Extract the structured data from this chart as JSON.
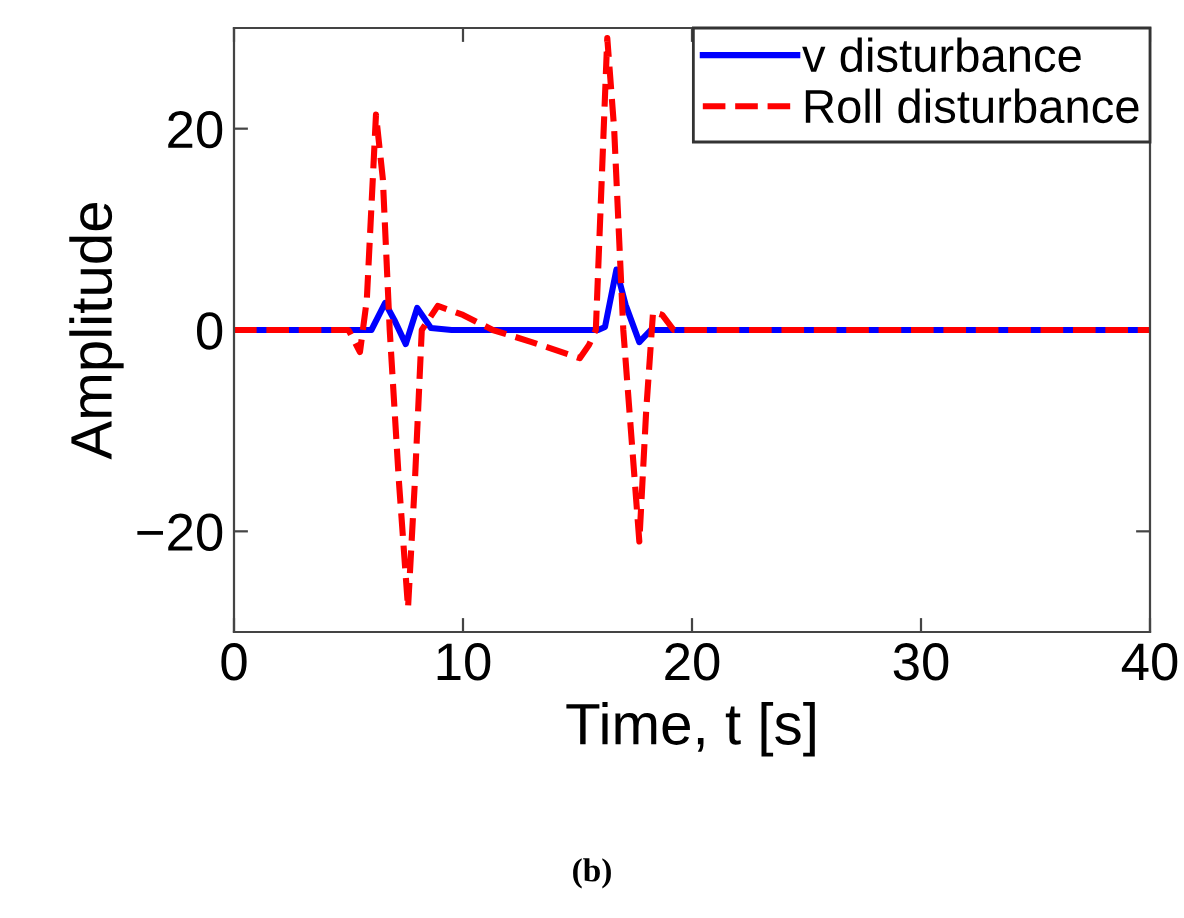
{
  "chart_data": {
    "type": "line",
    "xlabel": "Time, t [s]",
    "ylabel": "Amplitude",
    "xlim": [
      0,
      40
    ],
    "ylim": [
      -30,
      30
    ],
    "xticks": [
      0,
      10,
      20,
      30,
      40
    ],
    "yticks": [
      {
        "value": -20,
        "label": "−20"
      },
      0,
      20
    ],
    "grid": false,
    "legend": "top right",
    "annotations": [
      "(b)"
    ],
    "series": [
      {
        "name": "v disturbance",
        "color": "#0000ff",
        "line_style": "solid",
        "x": [
          0,
          6.0,
          6.6,
          7.0,
          7.5,
          8.0,
          8.6,
          9.5,
          15.9,
          16.2,
          16.7,
          17.1,
          17.7,
          18.2,
          40
        ],
        "values": [
          0,
          0,
          2.7,
          1.0,
          -1.4,
          2.2,
          0.2,
          0,
          0,
          0.3,
          6.0,
          2.5,
          -1.2,
          0,
          0
        ]
      },
      {
        "name": "Roll disturbance",
        "color": "#ff0000",
        "line_style": "dashed",
        "x": [
          0,
          5.0,
          5.5,
          5.8,
          6.2,
          6.5,
          6.8,
          7.2,
          7.6,
          7.9,
          8.2,
          8.9,
          10,
          11.3,
          13,
          15.1,
          15.5,
          15.8,
          16.3,
          16.6,
          17.0,
          17.4,
          17.7,
          18.0,
          18.3,
          18.7,
          19.2,
          40
        ],
        "values": [
          0,
          0,
          -2.2,
          3,
          21.4,
          15,
          0,
          -15,
          -27.6,
          -15,
          0,
          2.4,
          1.5,
          0,
          -1.2,
          -2.8,
          -1.5,
          0,
          29,
          20,
          0,
          -12,
          -21,
          -8,
          1.8,
          1.5,
          0,
          0
        ]
      }
    ]
  }
}
